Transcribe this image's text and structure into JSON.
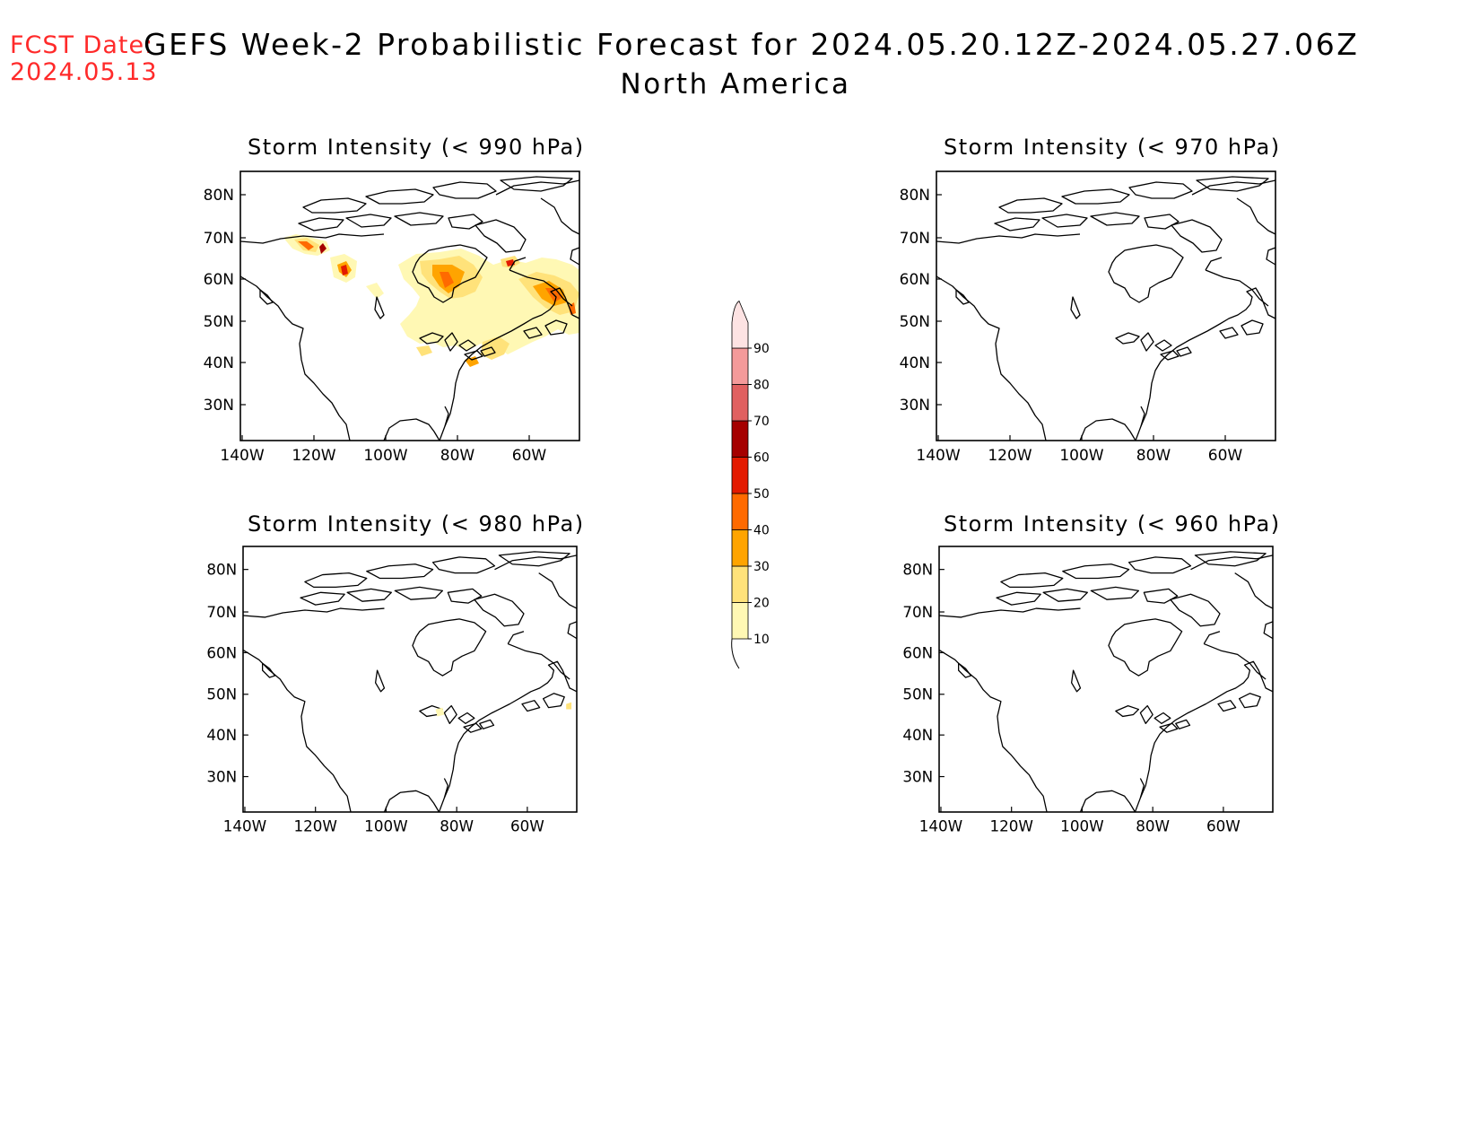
{
  "fcst_date": {
    "label": "FCST Date:",
    "value": "2024.05.13"
  },
  "title": "GEFS Week-2 Probabilistic Forecast for 2024.05.20.12Z-2024.05.27.06Z",
  "subtitle": "North America",
  "panels": [
    {
      "id": "p1",
      "title": "Storm Intensity (< 990 hPa)",
      "threshold_hpa": 990
    },
    {
      "id": "p2",
      "title": "Storm Intensity (< 970 hPa)",
      "threshold_hpa": 970
    },
    {
      "id": "p3",
      "title": "Storm Intensity (< 980 hPa)",
      "threshold_hpa": 980
    },
    {
      "id": "p4",
      "title": "Storm Intensity (< 960 hPa)",
      "threshold_hpa": 960
    }
  ],
  "axes": {
    "lon_ticks": [
      "140W",
      "120W",
      "100W",
      "80W",
      "60W"
    ],
    "lat_ticks": [
      "80N",
      "70N",
      "60N",
      "50N",
      "40N",
      "30N"
    ]
  },
  "colorbar": {
    "levels": [
      10,
      20,
      30,
      40,
      50,
      60,
      70,
      80,
      90
    ],
    "labels": [
      "10",
      "20",
      "30",
      "40",
      "50",
      "60",
      "70",
      "80",
      "90"
    ],
    "colors": [
      "#fff8b4",
      "#ffe27a",
      "#ffa400",
      "#ff6a00",
      "#e31a00",
      "#a50000",
      "#e06060",
      "#f49a9a",
      "#fde3e3"
    ]
  }
}
